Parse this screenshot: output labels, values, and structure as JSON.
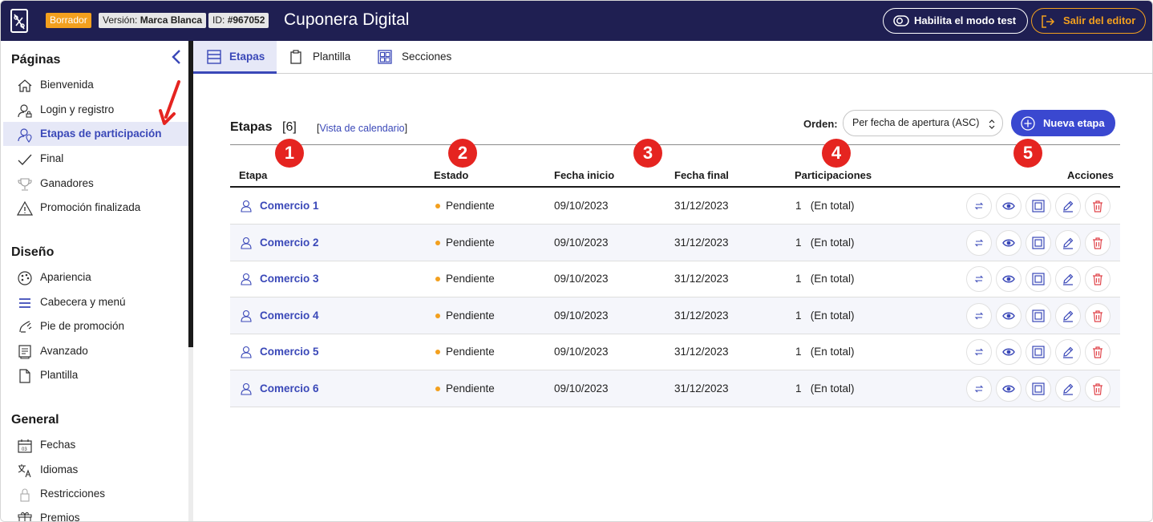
{
  "topbar": {
    "draft_tag": "Borrador",
    "version_label": "Versión:",
    "version_value": "Marca Blanca",
    "id_label": "ID:",
    "id_value": "#967052",
    "app_title": "Cuponera Digital",
    "test_mode_label": "Habilita el modo test",
    "exit_label": "Salir del editor"
  },
  "sidebar": {
    "sections": [
      {
        "title": "Páginas",
        "items": [
          {
            "label": "Bienvenida",
            "icon": "home-icon"
          },
          {
            "label": "Login y registro",
            "icon": "user-lock-icon"
          },
          {
            "label": "Etapas de participación",
            "icon": "user-pin-icon",
            "active": true
          },
          {
            "label": "Final",
            "icon": "check-icon"
          },
          {
            "label": "Ganadores",
            "icon": "trophy-icon"
          },
          {
            "label": "Promoción finalizada",
            "icon": "warning-icon"
          }
        ]
      },
      {
        "title": "Diseño",
        "items": [
          {
            "label": "Apariencia",
            "icon": "palette-icon"
          },
          {
            "label": "Cabecera y menú",
            "icon": "menu-icon"
          },
          {
            "label": "Pie de promoción",
            "icon": "footer-icon"
          },
          {
            "label": "Avanzado",
            "icon": "advanced-icon"
          },
          {
            "label": "Plantilla",
            "icon": "file-icon"
          }
        ]
      },
      {
        "title": "General",
        "items": [
          {
            "label": "Fechas",
            "icon": "calendar-icon"
          },
          {
            "label": "Idiomas",
            "icon": "translate-icon"
          },
          {
            "label": "Restricciones",
            "icon": "lock-icon"
          },
          {
            "label": "Premios",
            "icon": "gift-icon"
          }
        ]
      }
    ]
  },
  "tabs": [
    {
      "label": "Etapas",
      "active": true
    },
    {
      "label": "Plantilla"
    },
    {
      "label": "Secciones"
    }
  ],
  "content": {
    "title": "Etapas",
    "count": "[6]",
    "calendar_open": "[",
    "calendar_link": "Vista de calendario",
    "calendar_close": "]",
    "order_label": "Orden:",
    "order_value": "Per fecha de apertura (ASC)",
    "new_button": "Nueva etapa"
  },
  "table": {
    "headers": [
      "Etapa",
      "Estado",
      "Fecha inicio",
      "Fecha final",
      "Participaciones",
      "Acciones"
    ],
    "badges": [
      "1",
      "2",
      "3",
      "4",
      "5"
    ],
    "rows": [
      {
        "name": "Comercio 1",
        "state": "Pendiente",
        "start": "09/10/2023",
        "end": "31/12/2023",
        "participations": "1   (En total)"
      },
      {
        "name": "Comercio 2",
        "state": "Pendiente",
        "start": "09/10/2023",
        "end": "31/12/2023",
        "participations": "1   (En total)"
      },
      {
        "name": "Comercio 3",
        "state": "Pendiente",
        "start": "09/10/2023",
        "end": "31/12/2023",
        "participations": "1   (En total)"
      },
      {
        "name": "Comercio 4",
        "state": "Pendiente",
        "start": "09/10/2023",
        "end": "31/12/2023",
        "participations": "1   (En total)"
      },
      {
        "name": "Comercio 5",
        "state": "Pendiente",
        "start": "09/10/2023",
        "end": "31/12/2023",
        "participations": "1   (En total)"
      },
      {
        "name": "Comercio 6",
        "state": "Pendiente",
        "start": "09/10/2023",
        "end": "31/12/2023",
        "participations": "1   (En total)"
      }
    ],
    "row_actions": [
      "swap-icon",
      "eye-icon",
      "duplicate-icon",
      "pencil-icon",
      "trash-icon"
    ]
  },
  "colors": {
    "topbar": "#1f1f52",
    "accent": "#3a48b8",
    "button": "#3a48d0",
    "draft": "#f3a01e",
    "badge": "#e52420",
    "danger": "#e0444a"
  }
}
